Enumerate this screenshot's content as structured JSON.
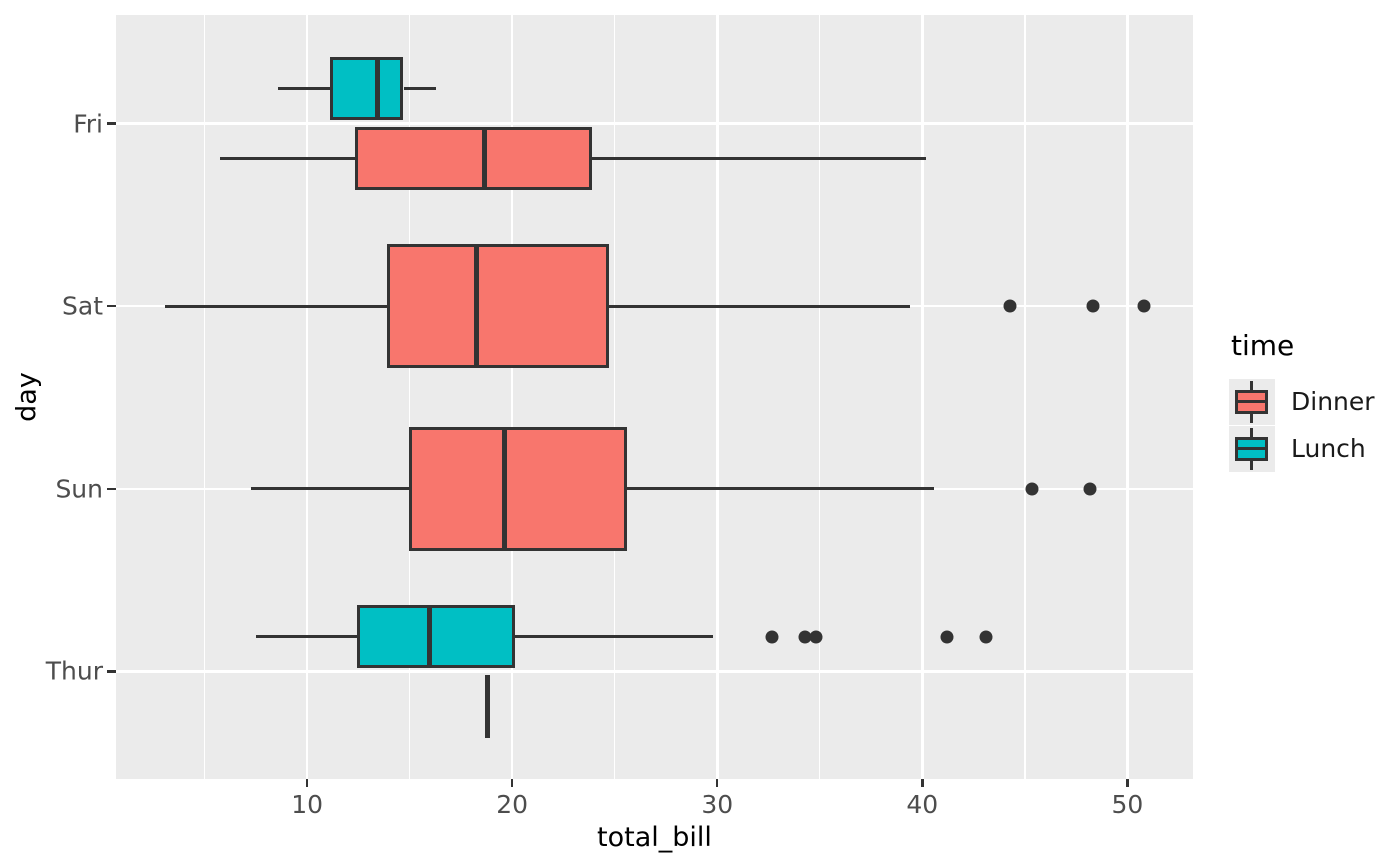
{
  "figure": {
    "background": "#ffffff",
    "panel_background": "#EBEBEB",
    "gridline_color": "#ffffff",
    "line_color": "#333333",
    "tick_label_color": "#4D4D4D"
  },
  "legend": {
    "title": "time",
    "entries": [
      {
        "label": "Dinner",
        "color": "#F8766D"
      },
      {
        "label": "Lunch",
        "color": "#00BFC4"
      }
    ]
  },
  "chart_data": {
    "type": "boxplot",
    "orientation": "horizontal",
    "title": "",
    "xlabel": "total_bill",
    "ylabel": "day",
    "xlim": [
      0.68,
      53.2
    ],
    "x_major_ticks": [
      10,
      20,
      30,
      40,
      50
    ],
    "x_minor_gridlines": [
      5,
      15,
      25,
      35,
      45
    ],
    "categories": [
      "Fri",
      "Sat",
      "Sun",
      "Thur"
    ],
    "grid": "major-and-minor-x, major-y",
    "legend_position": "right",
    "series_by": "time",
    "groups": [
      {
        "day": "Fri",
        "time": "Lunch",
        "whisker_low": 8.58,
        "q1": 11.13,
        "median": 13.42,
        "q3": 14.7,
        "whisker_high": 16.27,
        "outliers": []
      },
      {
        "day": "Fri",
        "time": "Dinner",
        "whisker_low": 5.75,
        "q1": 12.35,
        "median": 18.67,
        "q3": 23.88,
        "whisker_high": 40.17,
        "outliers": []
      },
      {
        "day": "Sat",
        "time": "Dinner",
        "whisker_low": 3.07,
        "q1": 13.91,
        "median": 18.24,
        "q3": 24.74,
        "whisker_high": 39.42,
        "outliers": [
          44.3,
          48.33,
          50.81
        ]
      },
      {
        "day": "Sun",
        "time": "Dinner",
        "whisker_low": 7.25,
        "q1": 14.99,
        "median": 19.63,
        "q3": 25.6,
        "whisker_high": 40.55,
        "outliers": [
          45.35,
          48.17
        ]
      },
      {
        "day": "Thur",
        "time": "Lunch",
        "whisker_low": 7.51,
        "q1": 12.44,
        "median": 15.98,
        "q3": 20.16,
        "whisker_high": 29.8,
        "outliers": [
          32.68,
          34.3,
          34.83,
          41.19,
          43.11
        ]
      },
      {
        "day": "Thur",
        "time": "Dinner",
        "whisker_low": 18.78,
        "q1": 18.78,
        "median": 18.78,
        "q3": 18.78,
        "whisker_high": 18.78,
        "outliers": []
      }
    ]
  }
}
